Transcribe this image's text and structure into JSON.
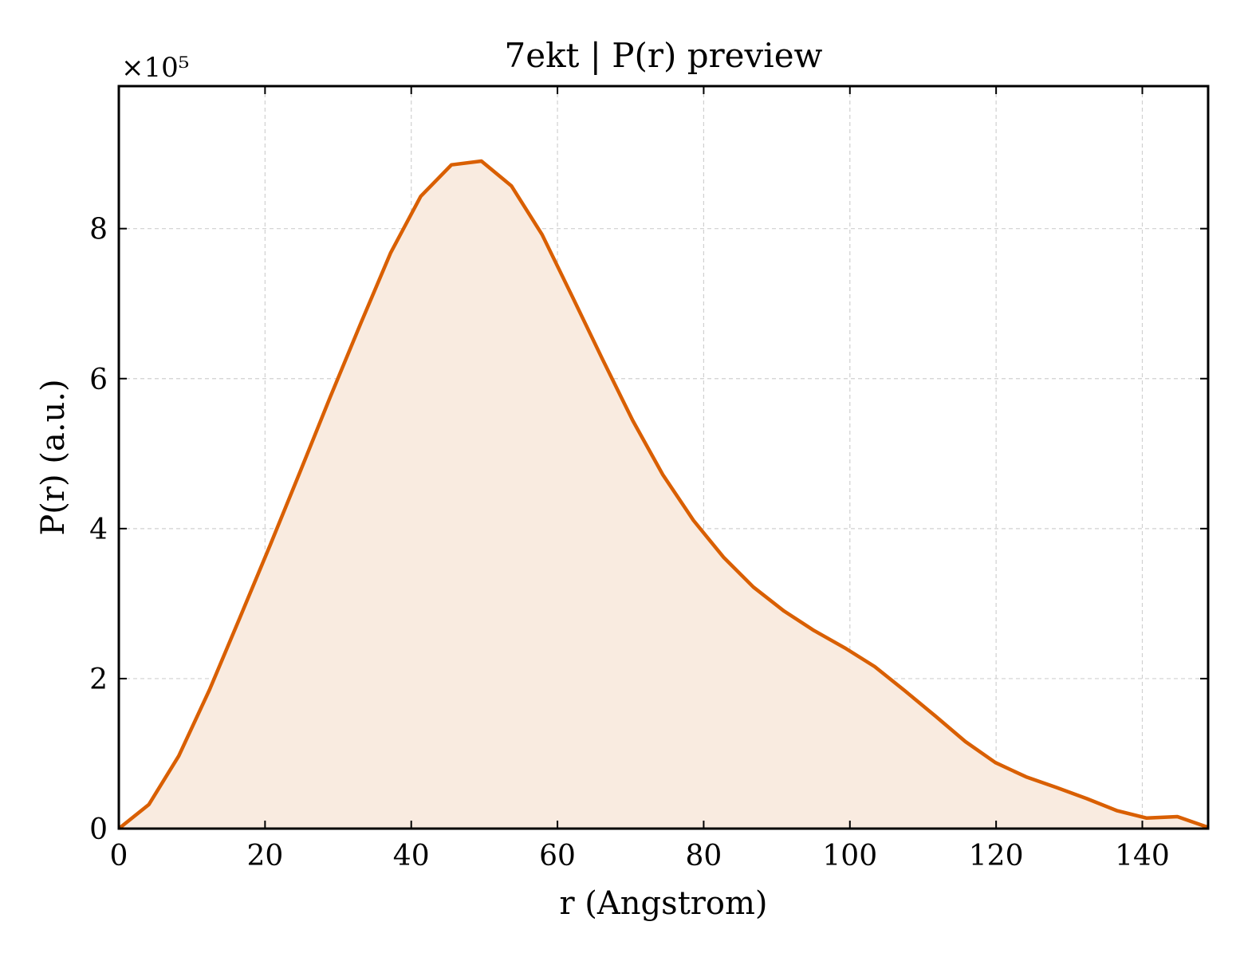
{
  "chart_data": {
    "type": "area",
    "title": "7ekt | P(r) preview",
    "xlabel": "r (Angstrom)",
    "ylabel": "P(r) (a.u.)",
    "y_multiplier": "×10⁵",
    "xlim": [
      0,
      149
    ],
    "ylim": [
      0,
      9.9
    ],
    "x_ticks": [
      0,
      20,
      40,
      60,
      80,
      100,
      120,
      140
    ],
    "y_ticks": [
      0,
      2,
      4,
      6,
      8
    ],
    "grid": true,
    "legend": "none",
    "line_color": "#d95f02",
    "fill_color": "#f9ebe0",
    "series": [
      {
        "x": [
          0,
          4.1,
          8.2,
          12.4,
          16.5,
          20.7,
          24.8,
          28.9,
          33.1,
          37.2,
          41.3,
          45.5,
          49.6,
          53.7,
          57.9,
          62.0,
          66.2,
          70.3,
          74.4,
          78.6,
          82.7,
          86.8,
          91.0,
          95.1,
          99.3,
          103.4,
          107.5,
          111.7,
          115.8,
          119.9,
          124.1,
          128.2,
          132.4,
          136.5,
          140.6,
          144.8,
          148.9
        ],
        "y": [
          0.0,
          0.32,
          0.97,
          1.85,
          2.8,
          3.78,
          4.76,
          5.75,
          6.74,
          7.68,
          8.43,
          8.85,
          8.9,
          8.57,
          7.92,
          7.1,
          6.25,
          5.44,
          4.72,
          4.11,
          3.62,
          3.22,
          2.9,
          2.64,
          2.41,
          2.16,
          1.84,
          1.5,
          1.16,
          0.88,
          0.69,
          0.55,
          0.4,
          0.24,
          0.14,
          0.16,
          0.02
        ]
      }
    ]
  }
}
